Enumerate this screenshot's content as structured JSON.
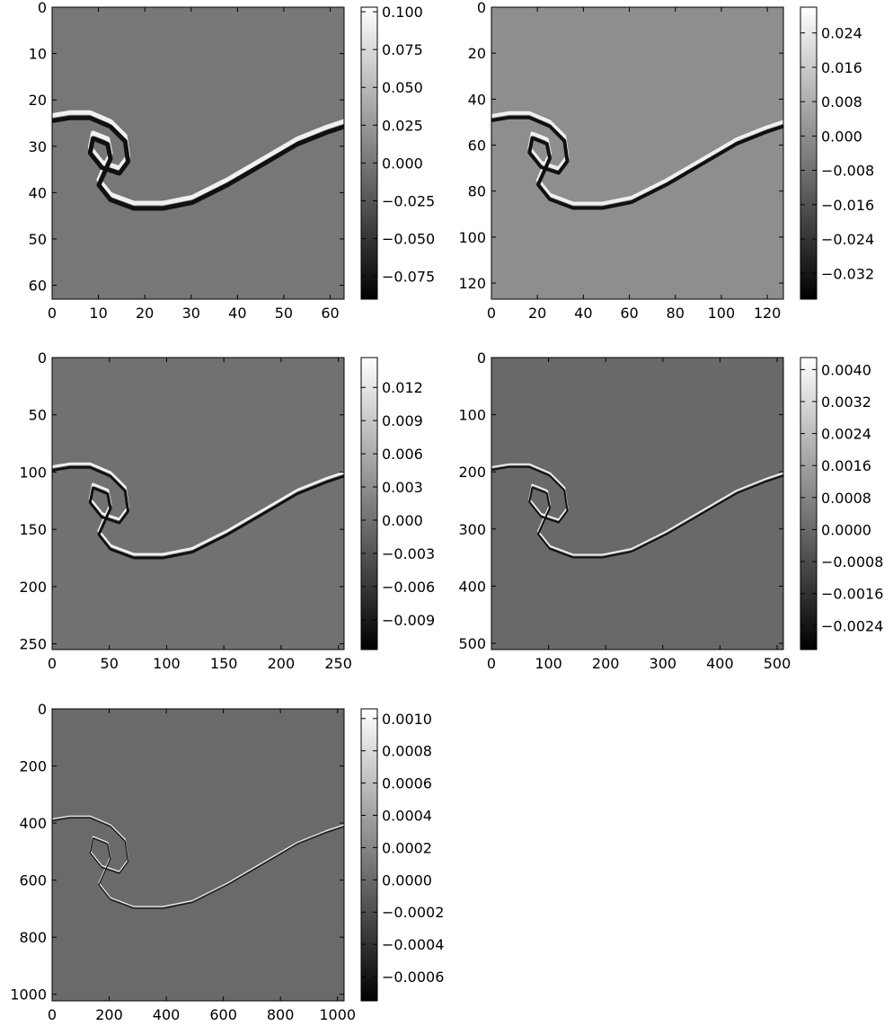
{
  "chart_data": [
    {
      "type": "heatmap",
      "colormap": "gray",
      "xlim": [
        0,
        63
      ],
      "ylim": [
        63,
        0
      ],
      "xticks": [
        0,
        10,
        20,
        30,
        40,
        50,
        60
      ],
      "yticks": [
        0,
        10,
        20,
        30,
        40,
        50,
        60
      ],
      "xtick_labels": [
        "0",
        "10",
        "20",
        "30",
        "40",
        "50",
        "60"
      ],
      "ytick_labels": [
        "0",
        "10",
        "20",
        "30",
        "40",
        "50",
        "60"
      ],
      "colorbar": {
        "range": [
          -0.09,
          0.103
        ],
        "ticks": [
          0.1,
          0.075,
          0.05,
          0.025,
          0.0,
          -0.025,
          -0.05,
          -0.075
        ],
        "tick_labels": [
          "0.100",
          "0.075",
          "0.050",
          "0.025",
          "0.000",
          "−0.025",
          "−0.050",
          "−0.075"
        ]
      },
      "background_value": 0.0
    },
    {
      "type": "heatmap",
      "colormap": "gray",
      "xlim": [
        0,
        127
      ],
      "ylim": [
        127,
        0
      ],
      "xticks": [
        0,
        20,
        40,
        60,
        80,
        100,
        120
      ],
      "yticks": [
        0,
        20,
        40,
        60,
        80,
        100,
        120
      ],
      "xtick_labels": [
        "0",
        "20",
        "40",
        "60",
        "80",
        "100",
        "120"
      ],
      "ytick_labels": [
        "0",
        "20",
        "40",
        "60",
        "80",
        "100",
        "120"
      ],
      "colorbar": {
        "range": [
          -0.038,
          0.03
        ],
        "ticks": [
          0.024,
          0.016,
          0.008,
          0.0,
          -0.008,
          -0.016,
          -0.024,
          -0.032
        ],
        "tick_labels": [
          "0.024",
          "0.016",
          "0.008",
          "0.000",
          "−0.008",
          "−0.016",
          "−0.024",
          "−0.032"
        ]
      },
      "background_value": 0.0
    },
    {
      "type": "heatmap",
      "colormap": "gray",
      "xlim": [
        0,
        255
      ],
      "ylim": [
        255,
        0
      ],
      "xticks": [
        0,
        50,
        100,
        150,
        200,
        250
      ],
      "yticks": [
        0,
        50,
        100,
        150,
        200,
        250
      ],
      "xtick_labels": [
        "0",
        "50",
        "100",
        "150",
        "200",
        "250"
      ],
      "ytick_labels": [
        "0",
        "50",
        "100",
        "150",
        "200",
        "250"
      ],
      "colorbar": {
        "range": [
          -0.0117,
          0.0147
        ],
        "ticks": [
          0.012,
          0.009,
          0.006,
          0.003,
          0.0,
          -0.003,
          -0.006,
          -0.009
        ],
        "tick_labels": [
          "0.012",
          "0.009",
          "0.006",
          "0.003",
          "0.000",
          "−0.003",
          "−0.006",
          "−0.009"
        ]
      },
      "background_value": 0.0
    },
    {
      "type": "heatmap",
      "colormap": "gray",
      "xlim": [
        0,
        511
      ],
      "ylim": [
        511,
        0
      ],
      "xticks": [
        0,
        100,
        200,
        300,
        400,
        500
      ],
      "yticks": [
        0,
        100,
        200,
        300,
        400,
        500
      ],
      "xtick_labels": [
        "0",
        "100",
        "200",
        "300",
        "400",
        "500"
      ],
      "ytick_labels": [
        "0",
        "100",
        "200",
        "300",
        "400",
        "500"
      ],
      "colorbar": {
        "range": [
          -0.003,
          0.0043
        ],
        "ticks": [
          0.004,
          0.0032,
          0.0024,
          0.0016,
          0.0008,
          0.0,
          -0.0008,
          -0.0016,
          -0.0024
        ],
        "tick_labels": [
          "0.0040",
          "0.0032",
          "0.0024",
          "0.0016",
          "0.0008",
          "0.0000",
          "−0.0008",
          "−0.0016",
          "−0.0024"
        ]
      },
      "background_value": 0.0
    },
    {
      "type": "heatmap",
      "colormap": "gray",
      "xlim": [
        0,
        1023
      ],
      "ylim": [
        1023,
        0
      ],
      "xticks": [
        0,
        200,
        400,
        600,
        800,
        1000
      ],
      "yticks": [
        0,
        200,
        400,
        600,
        800,
        1000
      ],
      "xtick_labels": [
        "0",
        "200",
        "400",
        "600",
        "800",
        "1000"
      ],
      "ytick_labels": [
        "0",
        "200",
        "400",
        "600",
        "800",
        "1000"
      ],
      "colorbar": {
        "range": [
          -0.00075,
          0.00106
        ],
        "ticks": [
          0.001,
          0.0008,
          0.0006,
          0.0004,
          0.0002,
          0.0,
          -0.0002,
          -0.0004,
          -0.0006
        ],
        "tick_labels": [
          "0.0010",
          "0.0008",
          "0.0006",
          "0.0004",
          "0.0002",
          "0.0000",
          "−0.0002",
          "−0.0004",
          "−0.0006"
        ]
      },
      "background_value": 0.0
    }
  ]
}
